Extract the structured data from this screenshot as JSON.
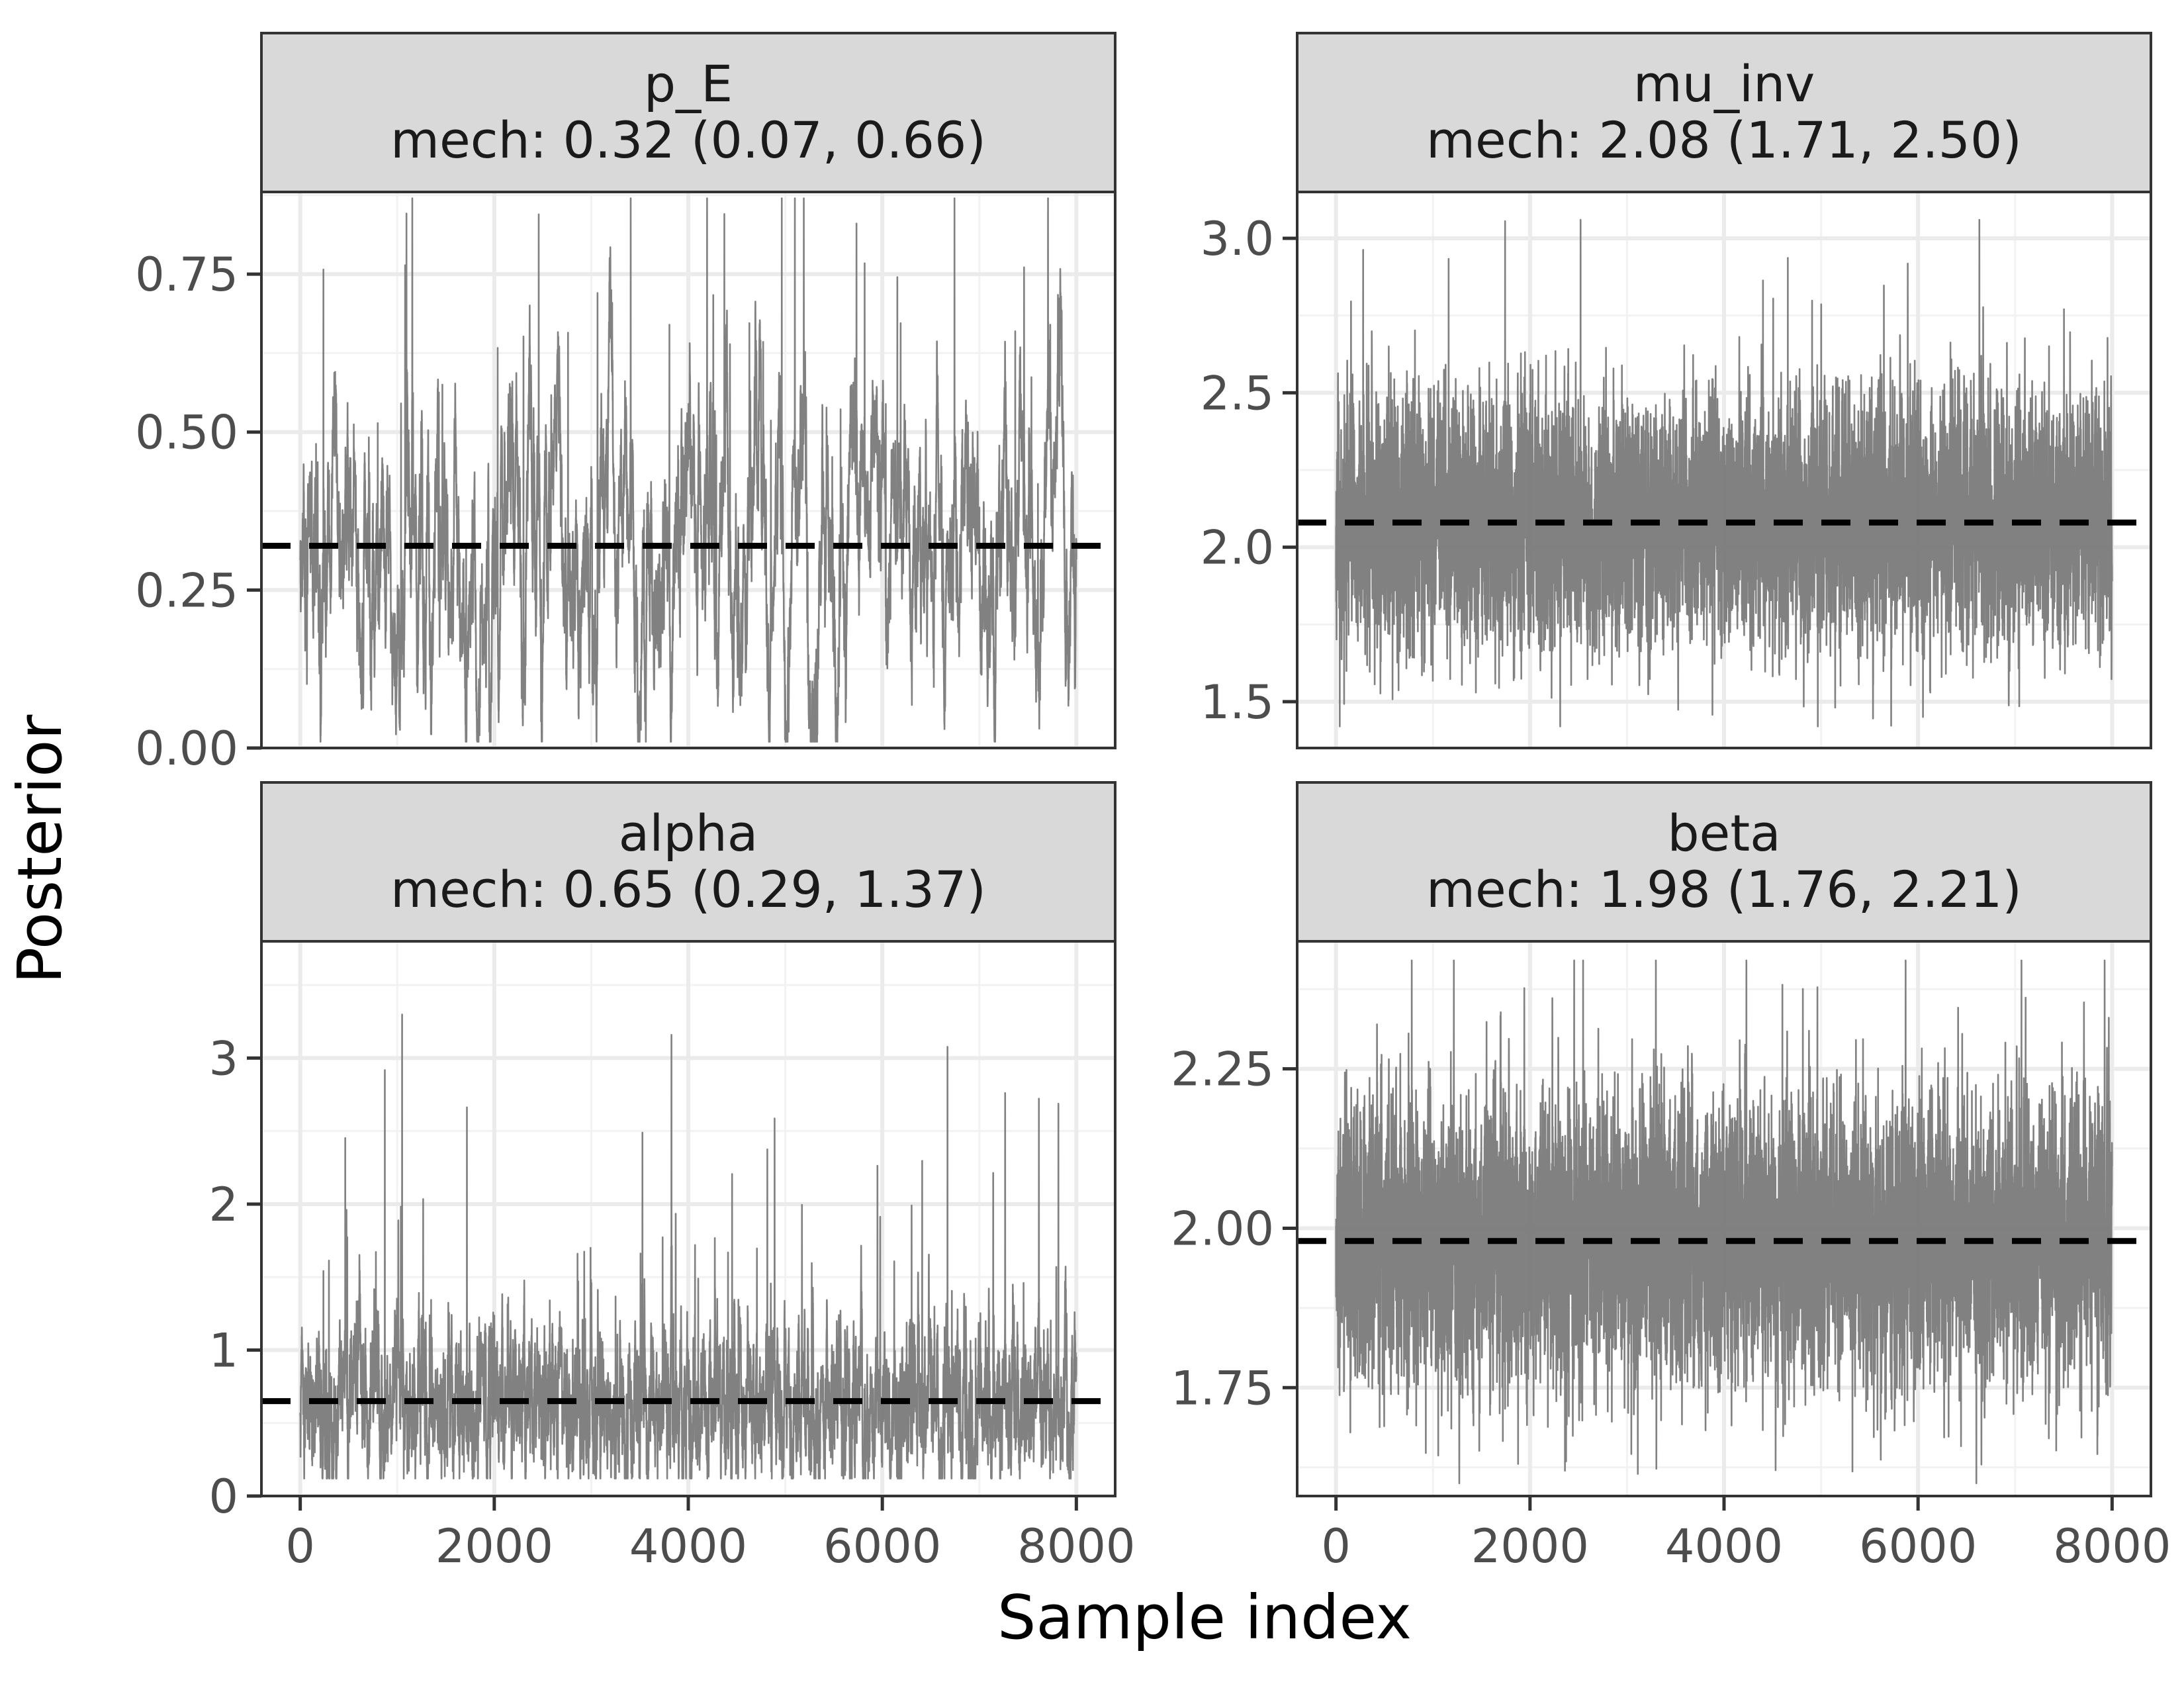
{
  "figure": {
    "xlabel": "Sample index",
    "ylabel": "Posterior"
  },
  "chart_data": [
    {
      "type": "line",
      "panel": "p_E",
      "strip_title": "p_E",
      "strip_subtitle": "mech: 0.32 (0.07, 0.66)",
      "xlim": [
        0,
        8000
      ],
      "ylim": [
        0.0,
        0.88
      ],
      "x_ticks": [
        "0",
        "2000",
        "4000",
        "6000",
        "8000"
      ],
      "x_tick_values": [
        0,
        2000,
        4000,
        6000,
        8000
      ],
      "y_ticks": [
        "0.00",
        "0.25",
        "0.50",
        "0.75"
      ],
      "y_tick_values": [
        0.0,
        0.25,
        0.5,
        0.75
      ],
      "reference_line": 0.32,
      "trace": {
        "n_samples": 8000,
        "center": 0.32,
        "spread": 0.14,
        "min": 0.01,
        "max": 0.87,
        "autocorr": 0.97,
        "spike_rate": 0.015,
        "spike_size": 0.25
      },
      "line_color": "#7a7a7a",
      "ref_line_color": "#000000"
    },
    {
      "type": "line",
      "panel": "mu_inv",
      "strip_title": "mu_inv",
      "strip_subtitle": "mech: 2.08 (1.71, 2.50)",
      "xlim": [
        0,
        8000
      ],
      "ylim": [
        1.35,
        3.15
      ],
      "x_ticks": [
        "0",
        "2000",
        "4000",
        "6000",
        "8000"
      ],
      "x_tick_values": [
        0,
        2000,
        4000,
        6000,
        8000
      ],
      "y_ticks": [
        "1.5",
        "2.0",
        "2.5",
        "3.0"
      ],
      "y_tick_values": [
        1.5,
        2.0,
        2.5,
        3.0
      ],
      "reference_line": 2.08,
      "trace": {
        "n_samples": 8000,
        "center": 2.08,
        "spread": 0.2,
        "min": 1.42,
        "max": 3.06,
        "autocorr": 0.3,
        "spike_rate": 0.004,
        "spike_size": 0.5
      },
      "line_color": "#7a7a7a",
      "ref_line_color": "#000000"
    },
    {
      "type": "line",
      "panel": "alpha",
      "strip_title": "alpha",
      "strip_subtitle": "mech: 0.65 (0.29, 1.37)",
      "xlim": [
        0,
        8000
      ],
      "ylim": [
        0,
        3.8
      ],
      "x_ticks": [
        "0",
        "2000",
        "4000",
        "6000",
        "8000"
      ],
      "x_tick_values": [
        0,
        2000,
        4000,
        6000,
        8000
      ],
      "y_ticks": [
        "0",
        "1",
        "2",
        "3"
      ],
      "y_tick_values": [
        0,
        1,
        2,
        3
      ],
      "reference_line": 0.65,
      "trace": {
        "n_samples": 8000,
        "center": 0.65,
        "spread": 0.28,
        "min": 0.12,
        "max": 3.65,
        "autocorr": 0.85,
        "spike_rate": 0.012,
        "spike_size": 0.9
      },
      "line_color": "#7a7a7a",
      "ref_line_color": "#000000"
    },
    {
      "type": "line",
      "panel": "beta",
      "strip_title": "beta",
      "strip_subtitle": "mech: 1.98 (1.76, 2.21)",
      "xlim": [
        0,
        8000
      ],
      "ylim": [
        1.58,
        2.45
      ],
      "x_ticks": [
        "0",
        "2000",
        "4000",
        "6000",
        "8000"
      ],
      "x_tick_values": [
        0,
        2000,
        4000,
        6000,
        8000
      ],
      "y_ticks": [
        "1.75",
        "2.00",
        "2.25"
      ],
      "y_tick_values": [
        1.75,
        2.0,
        2.25
      ],
      "reference_line": 1.98,
      "trace": {
        "n_samples": 8000,
        "center": 1.98,
        "spread": 0.11,
        "min": 1.6,
        "max": 2.42,
        "autocorr": 0.3,
        "spike_rate": 0.004,
        "spike_size": 0.3
      },
      "line_color": "#7a7a7a",
      "ref_line_color": "#000000"
    }
  ]
}
